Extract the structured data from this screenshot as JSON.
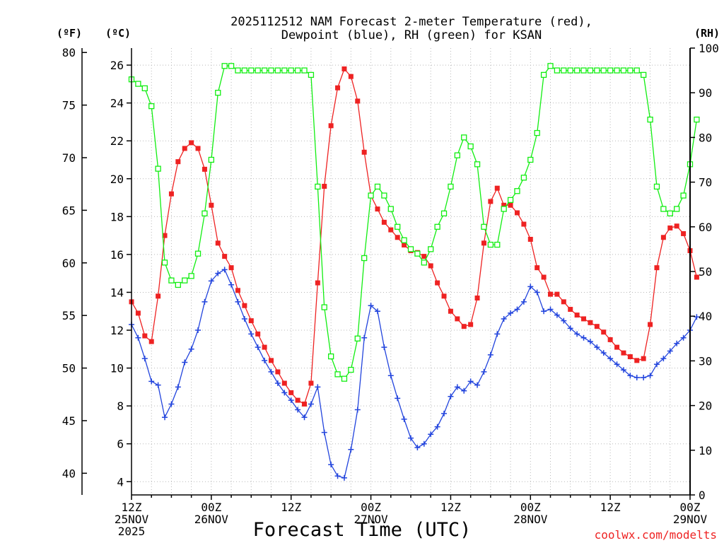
{
  "chart_data": {
    "type": "line",
    "title_line1": "2025112512 NAM Forecast 2-meter Temperature (red),",
    "title_line2": "Dewpoint (blue), RH (green) for KSAN",
    "xlabel": "Forecast Time (UTC)",
    "credit": "coolwx.com/modelts",
    "unit_left_f": "(ºF)",
    "unit_left_c": "(ºC)",
    "unit_right": "(RH)",
    "x_range_hours": [
      0,
      84
    ],
    "x_ticks": [
      {
        "h": 0,
        "lines": [
          "12Z",
          "25NOV",
          "2025"
        ]
      },
      {
        "h": 12,
        "lines": [
          "00Z",
          "26NOV"
        ]
      },
      {
        "h": 24,
        "lines": [
          "12Z"
        ]
      },
      {
        "h": 36,
        "lines": [
          "00Z",
          "27NOV"
        ]
      },
      {
        "h": 48,
        "lines": [
          "12Z"
        ]
      },
      {
        "h": 60,
        "lines": [
          "00Z",
          "28NOV"
        ]
      },
      {
        "h": 72,
        "lines": [
          "12Z"
        ]
      },
      {
        "h": 84,
        "lines": [
          "00Z",
          "29NOV"
        ]
      }
    ],
    "celsius_axis": {
      "range": [
        3.3,
        26.9
      ],
      "ticks": [
        4,
        6,
        8,
        10,
        12,
        14,
        16,
        18,
        20,
        22,
        24,
        26
      ]
    },
    "fahrenheit_axis": {
      "ticks": [
        40,
        45,
        50,
        55,
        60,
        65,
        70,
        75,
        80
      ]
    },
    "rh_axis": {
      "range": [
        0,
        100
      ],
      "ticks": [
        0,
        10,
        20,
        30,
        40,
        50,
        60,
        70,
        80,
        90,
        100
      ]
    },
    "series": [
      {
        "name": "2-meter Temperature",
        "unit": "C",
        "color": "#ee2222",
        "values": [
          13.5,
          12.9,
          11.7,
          11.4,
          13.8,
          17.0,
          19.2,
          20.9,
          21.6,
          21.9,
          21.6,
          20.5,
          18.6,
          16.6,
          15.9,
          15.3,
          14.1,
          13.3,
          12.5,
          11.8,
          11.1,
          10.4,
          9.8,
          9.2,
          8.7,
          8.3,
          8.1,
          9.2,
          14.5,
          19.6,
          22.8,
          24.8,
          25.8,
          25.4,
          24.1,
          21.4,
          19.1,
          18.4,
          17.7,
          17.3,
          16.9,
          16.5,
          16.2,
          16.1,
          15.9,
          15.4,
          14.5,
          13.8,
          13.0,
          12.6,
          12.2,
          12.3,
          13.7,
          16.6,
          18.8,
          19.5,
          18.6,
          18.6,
          18.2,
          17.6,
          16.8,
          15.3,
          14.8,
          13.9,
          13.9,
          13.5,
          13.1,
          12.8,
          12.6,
          12.4,
          12.2,
          11.9,
          11.5,
          11.1,
          10.8,
          10.6,
          10.4,
          10.5,
          12.3,
          15.3,
          16.9,
          17.4,
          17.5,
          17.1,
          16.2,
          14.8
        ]
      },
      {
        "name": "Dewpoint",
        "unit": "C",
        "color": "#2244dd",
        "values": [
          12.3,
          11.6,
          10.5,
          9.3,
          9.1,
          7.4,
          8.1,
          9.0,
          10.3,
          11.0,
          12.0,
          13.5,
          14.6,
          15.0,
          15.2,
          14.4,
          13.5,
          12.6,
          11.8,
          11.1,
          10.4,
          9.8,
          9.2,
          8.7,
          8.3,
          7.8,
          7.4,
          8.1,
          9.0,
          6.6,
          4.9,
          4.3,
          4.2,
          5.7,
          7.8,
          11.6,
          13.3,
          13.0,
          11.1,
          9.6,
          8.4,
          7.3,
          6.3,
          5.8,
          6.0,
          6.5,
          6.9,
          7.6,
          8.5,
          9.0,
          8.8,
          9.3,
          9.1,
          9.8,
          10.7,
          11.8,
          12.6,
          12.9,
          13.1,
          13.5,
          14.3,
          14.0,
          13.0,
          13.1,
          12.8,
          12.5,
          12.1,
          11.8,
          11.6,
          11.4,
          11.1,
          10.8,
          10.5,
          10.2,
          9.9,
          9.6,
          9.5,
          9.5,
          9.6,
          10.2,
          10.5,
          10.9,
          11.3,
          11.6,
          12.0,
          12.7
        ]
      },
      {
        "name": "RH",
        "unit": "%",
        "color": "#11ee11",
        "values": [
          93,
          92,
          91,
          87,
          73,
          52,
          48,
          47,
          48,
          49,
          54,
          63,
          75,
          90,
          96,
          96,
          95,
          95,
          95,
          95,
          95,
          95,
          95,
          95,
          95,
          95,
          95,
          94,
          69,
          42,
          31,
          27,
          26,
          28,
          35,
          53,
          67,
          69,
          67,
          64,
          60,
          57,
          55,
          54,
          52,
          55,
          60,
          63,
          69,
          76,
          80,
          78,
          74,
          60,
          56,
          56,
          64,
          66,
          68,
          71,
          75,
          81,
          94,
          96,
          95,
          95,
          95,
          95,
          95,
          95,
          95,
          95,
          95,
          95,
          95,
          95,
          95,
          94,
          84,
          69,
          64,
          63,
          64,
          67,
          74,
          84
        ]
      }
    ]
  }
}
